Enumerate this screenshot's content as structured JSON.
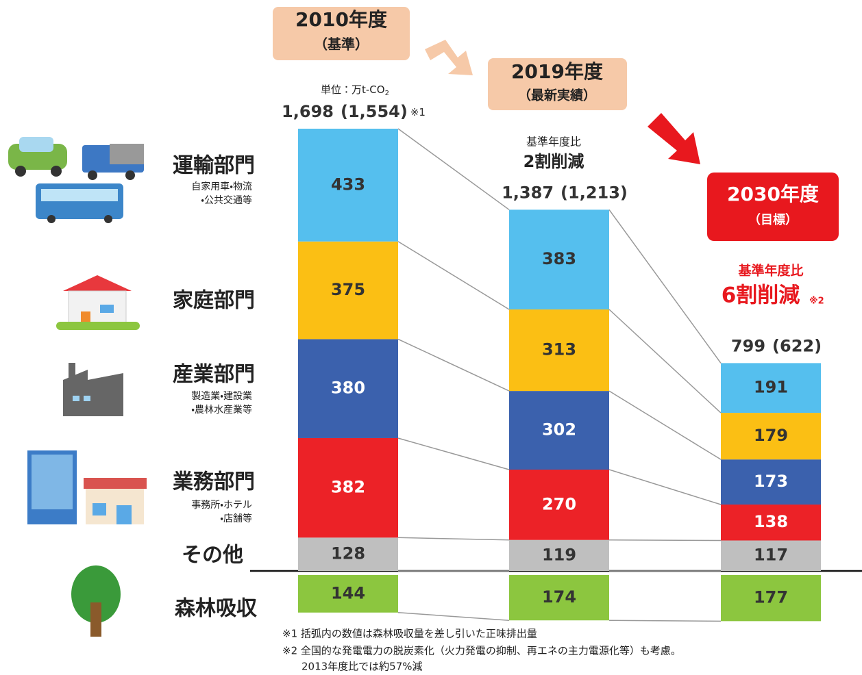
{
  "chart_data": {
    "type": "stacked_bar",
    "unit": "単位：万t-CO",
    "unit_subscript": "2",
    "categories": [
      "2010年度",
      "2019年度",
      "2030年度"
    ],
    "category_notes": [
      "（基準）",
      "（最新実績）",
      "（目標）"
    ],
    "total_labels": [
      "1,698",
      "1,387",
      "799"
    ],
    "net_labels": [
      "(1,554)",
      "(1,213)",
      "(622)"
    ],
    "total_note": "※1",
    "reductions": [
      {
        "label": "基準年度比",
        "text": "2割削減"
      },
      {
        "label": "基準年度比",
        "text": "6割削減",
        "note": "※2"
      }
    ],
    "series": [
      {
        "name": "運輸部門",
        "details": [
          "自家用車・物流",
          "・公共交通等"
        ],
        "color": "#55bfee",
        "label_color": "#333333",
        "values": [
          433,
          383,
          191
        ]
      },
      {
        "name": "家庭部門",
        "details": [],
        "color": "#fbbf14",
        "label_color": "#333333",
        "values": [
          375,
          313,
          179
        ]
      },
      {
        "name": "産業部門",
        "details": [
          "製造業・建設業",
          "・農林水産業等"
        ],
        "color": "#3b61ad",
        "label_color": "#ffffff",
        "values": [
          380,
          302,
          173
        ]
      },
      {
        "name": "業務部門",
        "details": [
          "事務所・ホテル",
          "・店舗等"
        ],
        "color": "#ec2227",
        "label_color": "#ffffff",
        "values": [
          382,
          270,
          138
        ]
      },
      {
        "name": "その他",
        "details": [],
        "color": "#bfbfbf",
        "label_color": "#333333",
        "values": [
          128,
          119,
          117
        ]
      }
    ],
    "absorption": {
      "name": "森林吸収",
      "color": "#8cc63f",
      "label_color": "#333333",
      "values": [
        144,
        174,
        177
      ]
    },
    "footnotes": [
      "※1 括弧内の数値は森林吸収量を差し引いた正味排出量",
      "※2 全国的な発電電力の脱炭素化（火力発電の抑制、再エネの主力電源化等）も考慮。",
      "2013年度比では約57%減"
    ]
  }
}
